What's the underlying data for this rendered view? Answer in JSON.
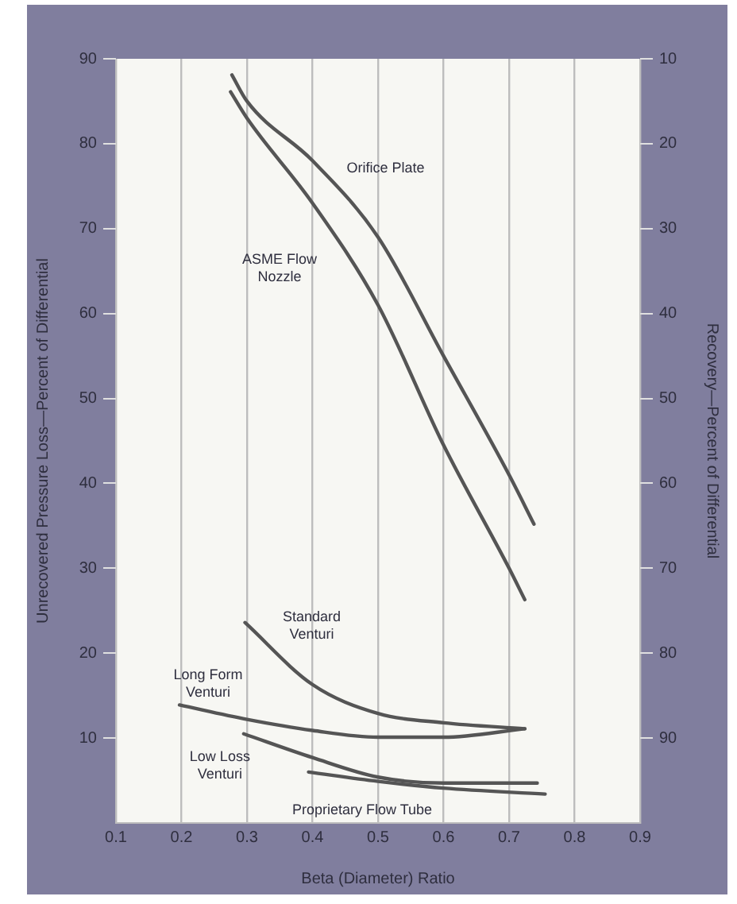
{
  "chart_data": {
    "type": "line",
    "xlabel": "Beta (Diameter) Ratio",
    "ylabel": "Unrecovered Pressure Loss—Percent of Differential",
    "y2label": "Recovery—Percent of Differential",
    "xlim": [
      0.1,
      0.9
    ],
    "xticks": [
      0.1,
      0.2,
      0.3,
      0.4,
      0.5,
      0.6,
      0.7,
      0.8,
      0.9
    ],
    "ylim": [
      0,
      90
    ],
    "yticks": [
      10,
      20,
      30,
      40,
      50,
      60,
      70,
      80,
      90
    ],
    "y2lim": [
      100,
      10
    ],
    "y2ticks": [
      10,
      20,
      30,
      40,
      50,
      60,
      70,
      80,
      90
    ],
    "grid": "x",
    "legend": false,
    "marker": "none",
    "line_style": "solid",
    "series": [
      {
        "name": "Orifice Plate",
        "color": "#555555",
        "x": [
          0.277,
          0.3,
          0.4,
          0.5,
          0.6,
          0.7,
          0.738
        ],
        "values": [
          88.1,
          85,
          78,
          69,
          55,
          41,
          35.2
        ]
      },
      {
        "name": "ASME Flow\nNozzle",
        "color": "#555555",
        "x": [
          0.275,
          0.3,
          0.4,
          0.5,
          0.6,
          0.7,
          0.724
        ],
        "values": [
          86.1,
          83,
          73,
          61,
          44.5,
          30,
          26.3
        ]
      },
      {
        "name": "Standard\nVenturi",
        "color": "#555555",
        "x": [
          0.297,
          0.4,
          0.5,
          0.6,
          0.724
        ],
        "values": [
          23.6,
          16.3,
          12.9,
          11.8,
          11.1
        ]
      },
      {
        "name": "Long Form\nVenturi",
        "color": "#555555",
        "x": [
          0.197,
          0.3,
          0.4,
          0.5,
          0.6,
          0.724
        ],
        "values": [
          13.9,
          12.2,
          10.9,
          10.1,
          10.1,
          11.1
        ]
      },
      {
        "name": "Low Loss\nVenturi",
        "color": "#555555",
        "x": [
          0.295,
          0.4,
          0.5,
          0.6,
          0.743
        ],
        "values": [
          10.5,
          7.7,
          5.4,
          4.7,
          4.7
        ]
      },
      {
        "name": "Proprietary Flow Tube",
        "color": "#555555",
        "x": [
          0.394,
          0.5,
          0.6,
          0.755
        ],
        "values": [
          6.0,
          4.9,
          4.1,
          3.4
        ]
      }
    ]
  }
}
